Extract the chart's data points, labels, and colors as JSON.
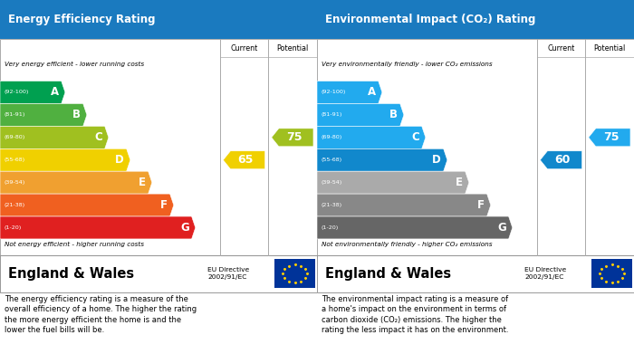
{
  "left_title": "Energy Efficiency Rating",
  "right_title": "Environmental Impact (CO₂) Rating",
  "header_bg": "#1a7abf",
  "bands_energy": [
    {
      "label": "A",
      "range": "(92-100)",
      "color": "#00a050",
      "wf": 0.3
    },
    {
      "label": "B",
      "range": "(81-91)",
      "color": "#50b040",
      "wf": 0.4
    },
    {
      "label": "C",
      "range": "(69-80)",
      "color": "#a0c020",
      "wf": 0.5
    },
    {
      "label": "D",
      "range": "(55-68)",
      "color": "#f0d000",
      "wf": 0.6
    },
    {
      "label": "E",
      "range": "(39-54)",
      "color": "#f0a030",
      "wf": 0.7
    },
    {
      "label": "F",
      "range": "(21-38)",
      "color": "#f06020",
      "wf": 0.8
    },
    {
      "label": "G",
      "range": "(1-20)",
      "color": "#e02020",
      "wf": 0.9
    }
  ],
  "bands_co2": [
    {
      "label": "A",
      "range": "(92-100)",
      "color": "#22aaee",
      "wf": 0.3
    },
    {
      "label": "B",
      "range": "(81-91)",
      "color": "#22aaee",
      "wf": 0.4
    },
    {
      "label": "C",
      "range": "(69-80)",
      "color": "#22aaee",
      "wf": 0.5
    },
    {
      "label": "D",
      "range": "(55-68)",
      "color": "#1188cc",
      "wf": 0.6
    },
    {
      "label": "E",
      "range": "(39-54)",
      "color": "#aaaaaa",
      "wf": 0.7
    },
    {
      "label": "F",
      "range": "(21-38)",
      "color": "#888888",
      "wf": 0.8
    },
    {
      "label": "G",
      "range": "(1-20)",
      "color": "#666666",
      "wf": 0.9
    }
  ],
  "e_current": 65,
  "e_current_color": "#f0d000",
  "e_current_band": 3,
  "e_potential": 75,
  "e_potential_color": "#a0c020",
  "e_potential_band": 2,
  "c_current": 60,
  "c_current_color": "#1188cc",
  "c_current_band": 3,
  "c_potential": 75,
  "c_potential_color": "#22aaee",
  "c_potential_band": 2,
  "e_top_label": "Very energy efficient - lower running costs",
  "e_bot_label": "Not energy efficient - higher running costs",
  "c_top_label": "Very environmentally friendly - lower CO₂ emissions",
  "c_bot_label": "Not environmentally friendly - higher CO₂ emissions",
  "footer_title": "England & Wales",
  "eu_line": "EU Directive\n2002/91/EC",
  "e_desc": "The energy efficiency rating is a measure of the\noverall efficiency of a home. The higher the rating\nthe more energy efficient the home is and the\nlower the fuel bills will be.",
  "c_desc": "The environmental impact rating is a measure of\na home's impact on the environment in terms of\ncarbon dioxide (CO₂) emissions. The higher the\nrating the less impact it has on the environment."
}
